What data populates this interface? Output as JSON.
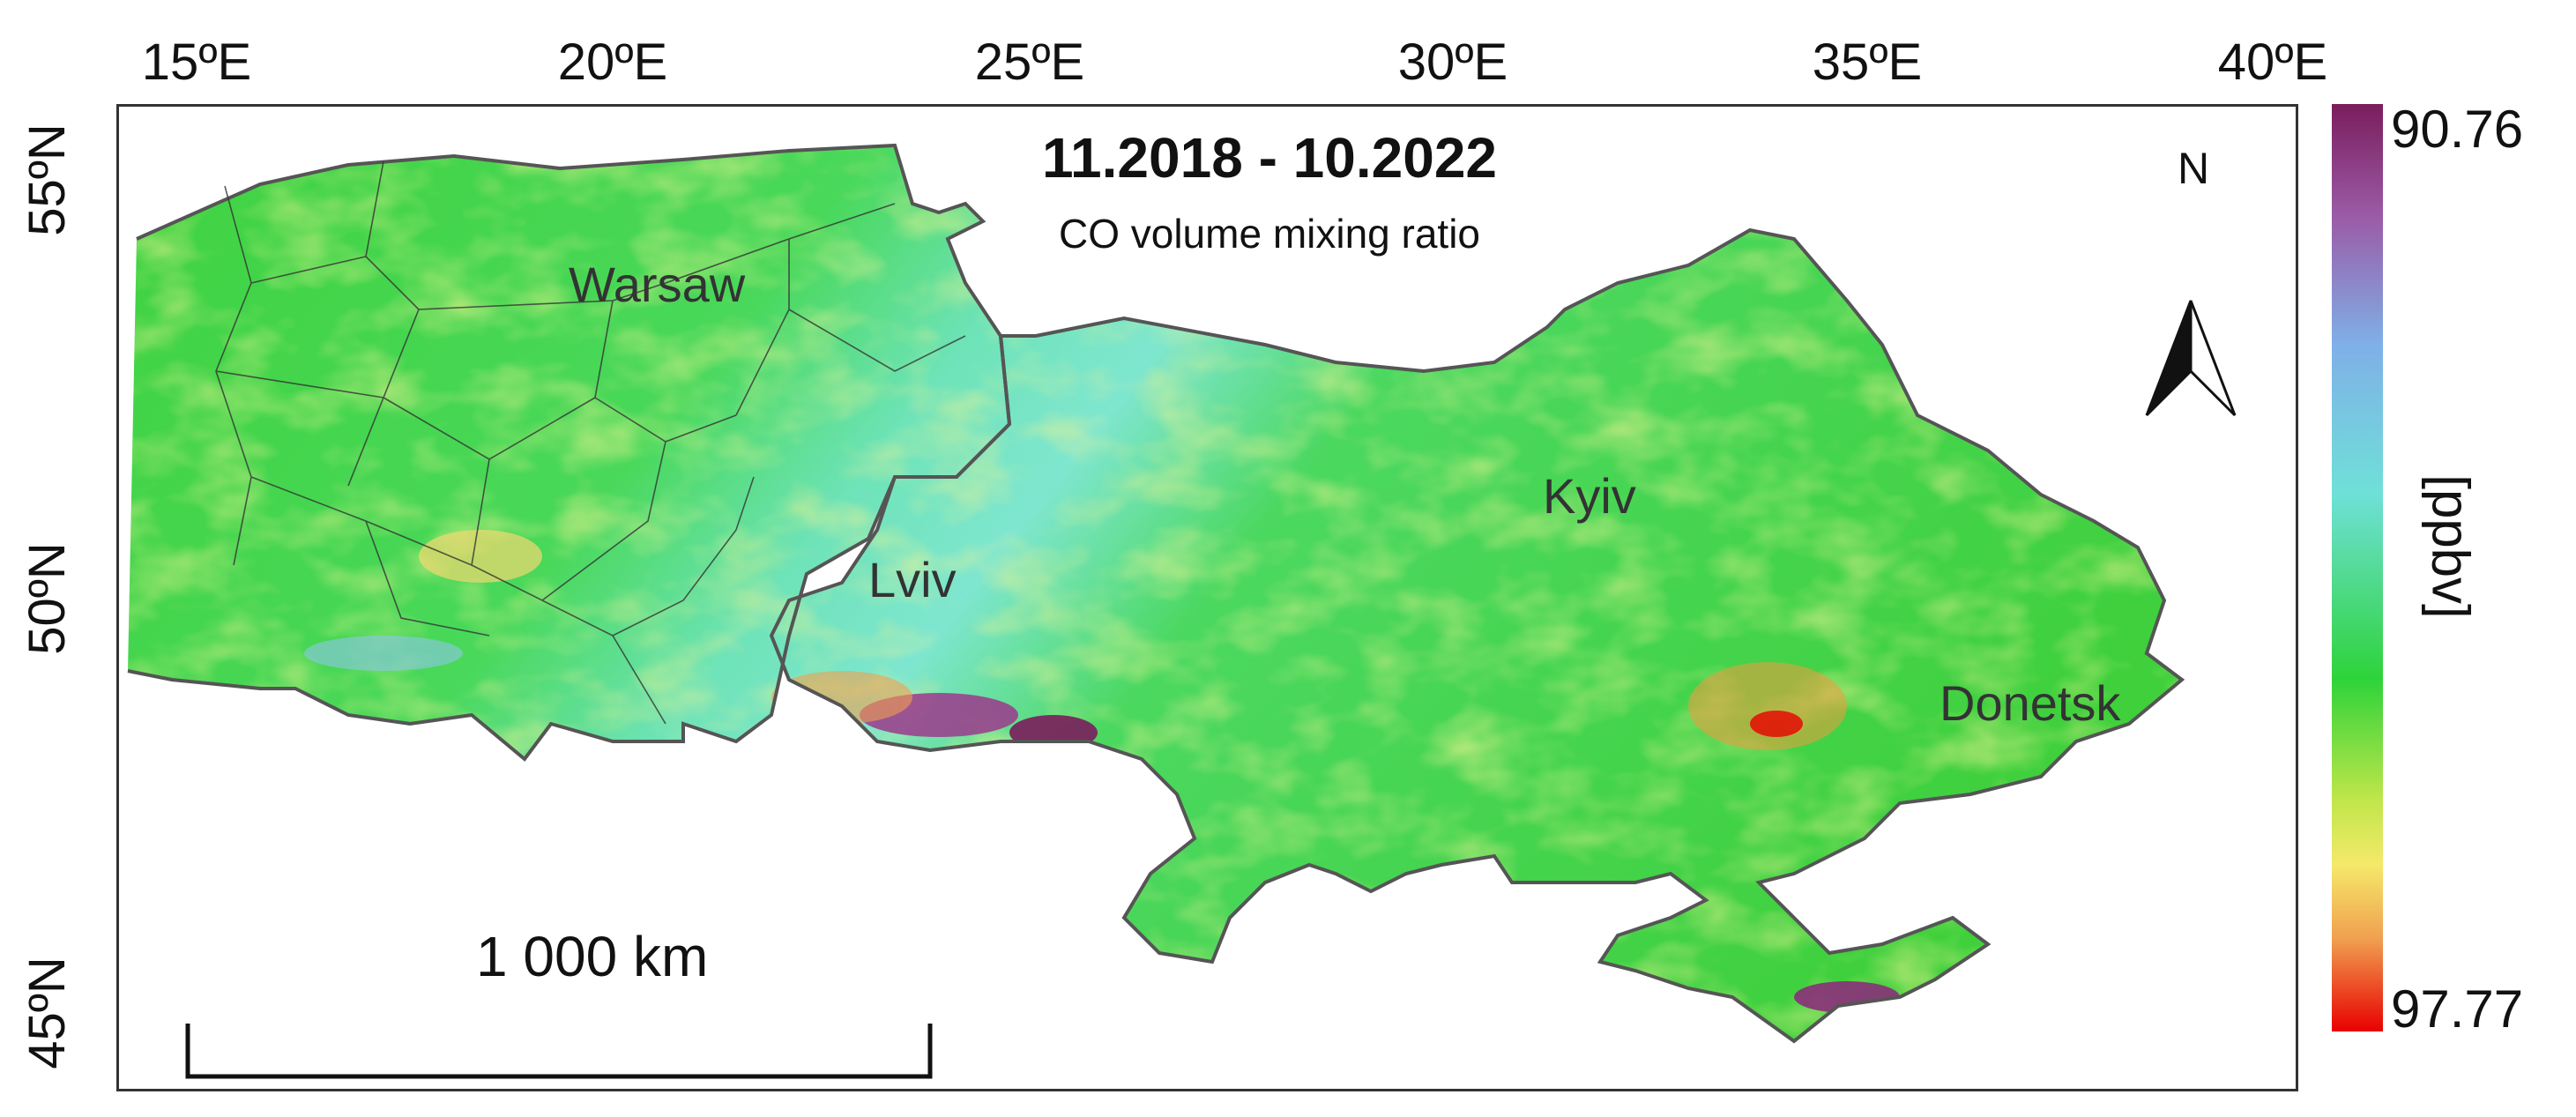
{
  "title": "11.2018 - 10.2022",
  "subtitle": "CO volume mixing ratio",
  "north_arrow": "N",
  "scale_bar": "1 000 km",
  "longitude_ticks": [
    "15ºE",
    "20ºE",
    "25ºE",
    "30ºE",
    "35ºE",
    "40ºE"
  ],
  "latitude_ticks": [
    "55ºN",
    "50ºN",
    "45ºN"
  ],
  "cities": [
    "Warsaw",
    "Lviv",
    "Kyiv",
    "Donetsk"
  ],
  "legend": {
    "top_value": "90.76",
    "bottom_value": "97.77",
    "unit": "[ppbv]",
    "colors": [
      "#7a1d5c",
      "#7fb0e8",
      "#6fe0d8",
      "#2ed33a",
      "#f5e96a",
      "#e80000"
    ]
  },
  "colors": {
    "border": "#555555",
    "land_base": "#3ccf3c"
  }
}
